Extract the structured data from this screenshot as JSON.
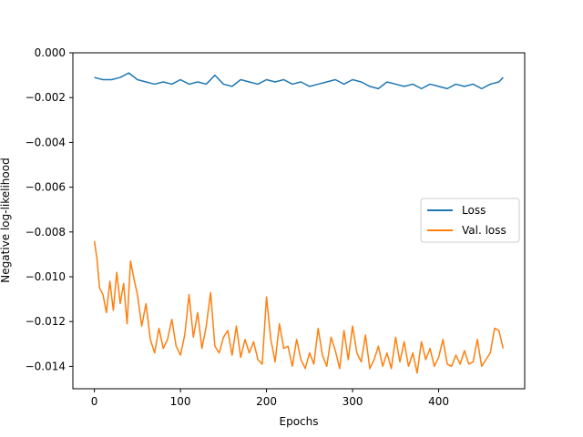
{
  "chart_data": {
    "type": "line",
    "title": "",
    "xlabel": "Epochs",
    "ylabel": "Negative log-likelihood",
    "xlim": [
      -25,
      500
    ],
    "ylim": [
      -0.015,
      0.0
    ],
    "xticks": [
      0,
      100,
      200,
      300,
      400
    ],
    "xtick_labels": [
      "0",
      "100",
      "200",
      "300",
      "400"
    ],
    "yticks": [
      0.0,
      -0.002,
      -0.004,
      -0.006,
      -0.008,
      -0.01,
      -0.012,
      -0.014
    ],
    "ytick_labels": [
      "0.000",
      "−0.002",
      "−0.004",
      "−0.006",
      "−0.008",
      "−0.010",
      "−0.012",
      "−0.014"
    ],
    "grid": false,
    "legend_position": "center-right",
    "series": [
      {
        "name": "Loss",
        "color": "#1f77b4",
        "x": [
          0,
          10,
          20,
          30,
          40,
          50,
          60,
          70,
          80,
          90,
          100,
          110,
          120,
          130,
          140,
          150,
          160,
          170,
          180,
          190,
          200,
          210,
          220,
          230,
          240,
          250,
          260,
          270,
          280,
          290,
          300,
          310,
          320,
          330,
          340,
          350,
          360,
          370,
          380,
          390,
          400,
          410,
          420,
          430,
          440,
          450,
          460,
          470,
          475
        ],
        "y": [
          -0.0011,
          -0.0012,
          -0.0012,
          -0.0011,
          -0.0009,
          -0.0012,
          -0.0013,
          -0.0014,
          -0.0013,
          -0.0014,
          -0.0012,
          -0.0014,
          -0.0013,
          -0.0014,
          -0.001,
          -0.0014,
          -0.0015,
          -0.0012,
          -0.0013,
          -0.0014,
          -0.0012,
          -0.0013,
          -0.0012,
          -0.0014,
          -0.0013,
          -0.0015,
          -0.0014,
          -0.0013,
          -0.0012,
          -0.0014,
          -0.0012,
          -0.0013,
          -0.0015,
          -0.0016,
          -0.0013,
          -0.0014,
          -0.0015,
          -0.0014,
          -0.0016,
          -0.0014,
          -0.0015,
          -0.0016,
          -0.0014,
          -0.0015,
          -0.0014,
          -0.0016,
          -0.0014,
          -0.0013,
          -0.0011
        ]
      },
      {
        "name": "Val. loss",
        "color": "#ff7f0e",
        "x": [
          0,
          3,
          6,
          10,
          14,
          18,
          22,
          26,
          30,
          34,
          38,
          42,
          46,
          50,
          55,
          60,
          65,
          70,
          75,
          80,
          85,
          90,
          95,
          100,
          105,
          110,
          115,
          120,
          125,
          130,
          135,
          140,
          145,
          150,
          155,
          160,
          165,
          170,
          175,
          180,
          185,
          190,
          195,
          200,
          205,
          210,
          215,
          220,
          225,
          230,
          235,
          240,
          245,
          250,
          255,
          260,
          265,
          270,
          275,
          280,
          285,
          290,
          295,
          300,
          305,
          310,
          315,
          320,
          325,
          330,
          335,
          340,
          345,
          350,
          355,
          360,
          365,
          370,
          375,
          380,
          385,
          390,
          395,
          400,
          405,
          410,
          415,
          420,
          425,
          430,
          435,
          440,
          445,
          450,
          455,
          460,
          465,
          470,
          475
        ],
        "y": [
          -0.0084,
          -0.0092,
          -0.0105,
          -0.0108,
          -0.0116,
          -0.0102,
          -0.0115,
          -0.0098,
          -0.0112,
          -0.0103,
          -0.0121,
          -0.0093,
          -0.0101,
          -0.0108,
          -0.0122,
          -0.0112,
          -0.0128,
          -0.0134,
          -0.0123,
          -0.0132,
          -0.0128,
          -0.0119,
          -0.0131,
          -0.0135,
          -0.0126,
          -0.0108,
          -0.0127,
          -0.0116,
          -0.0132,
          -0.0122,
          -0.0107,
          -0.0131,
          -0.0134,
          -0.0127,
          -0.0124,
          -0.0135,
          -0.0122,
          -0.0136,
          -0.0128,
          -0.0134,
          -0.0129,
          -0.0137,
          -0.0139,
          -0.0109,
          -0.0128,
          -0.0138,
          -0.0121,
          -0.0132,
          -0.0131,
          -0.014,
          -0.0128,
          -0.0137,
          -0.0141,
          -0.0134,
          -0.0139,
          -0.0123,
          -0.0135,
          -0.014,
          -0.0127,
          -0.0133,
          -0.0141,
          -0.0124,
          -0.0137,
          -0.0122,
          -0.0134,
          -0.0138,
          -0.0126,
          -0.0141,
          -0.0137,
          -0.0131,
          -0.014,
          -0.0134,
          -0.0141,
          -0.0127,
          -0.0138,
          -0.0129,
          -0.014,
          -0.0134,
          -0.0143,
          -0.0129,
          -0.0137,
          -0.0132,
          -0.014,
          -0.0136,
          -0.0128,
          -0.0139,
          -0.014,
          -0.0135,
          -0.0139,
          -0.0133,
          -0.0139,
          -0.0138,
          -0.0128,
          -0.014,
          -0.0137,
          -0.0134,
          -0.0123,
          -0.0124,
          -0.0132
        ]
      }
    ]
  }
}
